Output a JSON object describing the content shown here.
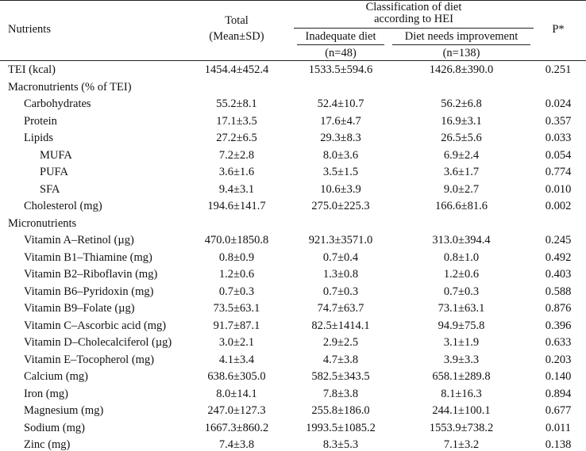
{
  "header": {
    "nutrients": "Nutrients",
    "total_line1": "Total",
    "total_line2": "(Mean±SD)",
    "classification_line1": "Classification of diet",
    "classification_line2": "according to HEI",
    "inadequate": "Inadequate diet",
    "inadequate_n": "(n=48)",
    "needs_improvement": "Diet needs improvement",
    "needs_improvement_n": "(n=138)",
    "p": "P*"
  },
  "rows": [
    {
      "label": "TEI (kcal)",
      "indent": 0,
      "total": "1454.4±452.4",
      "inadequate": "1533.5±594.6",
      "improve": "1426.8±390.0",
      "p": "0.251"
    },
    {
      "label": "Macronutrients (% of TEI)",
      "indent": 0,
      "total": "",
      "inadequate": "",
      "improve": "",
      "p": ""
    },
    {
      "label": "Carbohydrates",
      "indent": 1,
      "total": "55.2±8.1",
      "inadequate": "52.4±10.7",
      "improve": "56.2±6.8",
      "p": "0.024"
    },
    {
      "label": "Protein",
      "indent": 1,
      "total": "17.1±3.5",
      "inadequate": "17.6±4.7",
      "improve": "16.9±3.1",
      "p": "0.357"
    },
    {
      "label": "Lipids",
      "indent": 1,
      "total": "27.2±6.5",
      "inadequate": "29.3±8.3",
      "improve": "26.5±5.6",
      "p": "0.033"
    },
    {
      "label": "MUFA",
      "indent": 2,
      "total": "7.2±2.8",
      "inadequate": "8.0±3.6",
      "improve": "6.9±2.4",
      "p": "0.054"
    },
    {
      "label": "PUFA",
      "indent": 2,
      "total": "3.6±1.6",
      "inadequate": "3.5±1.5",
      "improve": "3.6±1.7",
      "p": "0.774"
    },
    {
      "label": "SFA",
      "indent": 2,
      "total": "9.4±3.1",
      "inadequate": "10.6±3.9",
      "improve": "9.0±2.7",
      "p": "0.010"
    },
    {
      "label": "Cholesterol (mg)",
      "indent": 1,
      "total": "194.6±141.7",
      "inadequate": "275.0±225.3",
      "improve": "166.6±81.6",
      "p": "0.002"
    },
    {
      "label": "Micronutrients",
      "indent": 0,
      "total": "",
      "inadequate": "",
      "improve": "",
      "p": ""
    },
    {
      "label": "Vitamin A–Retinol (µg)",
      "indent": 1,
      "total": "470.0±1850.8",
      "inadequate": "921.3±3571.0",
      "improve": "313.0±394.4",
      "p": "0.245"
    },
    {
      "label": "Vitamin B1–Thiamine (mg)",
      "indent": 1,
      "total": "0.8±0.9",
      "inadequate": "0.7±0.4",
      "improve": "0.8±1.0",
      "p": "0.492"
    },
    {
      "label": "Vitamin B2–Riboflavin (mg)",
      "indent": 1,
      "total": "1.2±0.6",
      "inadequate": "1.3±0.8",
      "improve": "1.2±0.6",
      "p": "0.403"
    },
    {
      "label": "Vitamin B6–Pyridoxin (mg)",
      "indent": 1,
      "total": "0.7±0.3",
      "inadequate": "0.7±0.3",
      "improve": "0.7±0.3",
      "p": "0.588"
    },
    {
      "label": "Vitamin B9–Folate (µg)",
      "indent": 1,
      "total": "73.5±63.1",
      "inadequate": "74.7±63.7",
      "improve": "73.1±63.1",
      "p": "0.876"
    },
    {
      "label": "Vitamin C–Ascorbic acid (mg)",
      "indent": 1,
      "total": "91.7±87.1",
      "inadequate": "82.5±1414.1",
      "improve": "94.9±75.8",
      "p": "0.396"
    },
    {
      "label": "Vitamin D–Cholecalciferol (µg)",
      "indent": 1,
      "total": "3.0±2.1",
      "inadequate": "2.9±2.5",
      "improve": "3.1±1.9",
      "p": "0.633"
    },
    {
      "label": "Vitamin E–Tocopherol (mg)",
      "indent": 1,
      "total": "4.1±3.4",
      "inadequate": "4.7±3.8",
      "improve": "3.9±3.3",
      "p": "0.203"
    },
    {
      "label": "Calcium (mg)",
      "indent": 1,
      "total": "638.6±305.0",
      "inadequate": "582.5±343.5",
      "improve": "658.1±289.8",
      "p": "0.140"
    },
    {
      "label": "Iron (mg)",
      "indent": 1,
      "total": "8.0±14.1",
      "inadequate": "7.8±3.8",
      "improve": "8.1±16.3",
      "p": "0.894"
    },
    {
      "label": "Magnesium (mg)",
      "indent": 1,
      "total": "247.0±127.3",
      "inadequate": "255.8±186.0",
      "improve": "244.1±100.1",
      "p": "0.677"
    },
    {
      "label": "Sodium (mg)",
      "indent": 1,
      "total": "1667.3±860.2",
      "inadequate": "1993.5±1085.2",
      "improve": "1553.9±738.2",
      "p": "0.011"
    },
    {
      "label": "Zinc (mg)",
      "indent": 1,
      "total": "7.4±3.8",
      "inadequate": "8.3±5.3",
      "improve": "7.1±3.2",
      "p": "0.138"
    }
  ]
}
